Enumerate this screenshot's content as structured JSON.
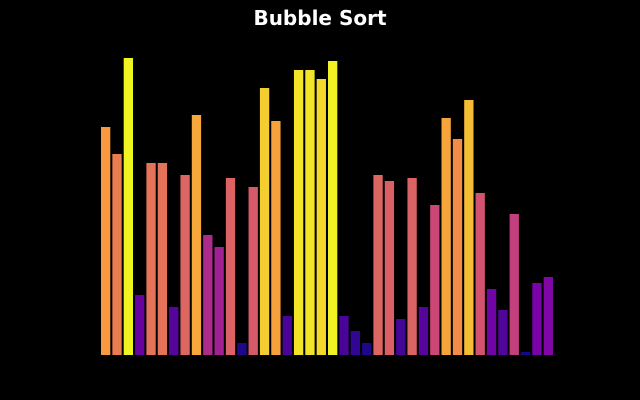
{
  "chart_data": {
    "type": "bar",
    "title": "Bubble Sort",
    "xlabel": "",
    "ylabel": "",
    "ylim": [
      0,
      100
    ],
    "grid": false,
    "background": "#000000",
    "colormap": "plasma",
    "values": [
      76,
      67,
      99,
      20,
      64,
      64,
      16,
      60,
      80,
      40,
      36,
      59,
      4,
      56,
      89,
      78,
      13,
      95,
      95,
      92,
      98,
      13,
      8,
      4,
      60,
      58,
      12,
      59,
      16,
      50,
      79,
      72,
      85,
      54,
      22,
      15,
      47,
      1,
      24,
      26
    ]
  }
}
